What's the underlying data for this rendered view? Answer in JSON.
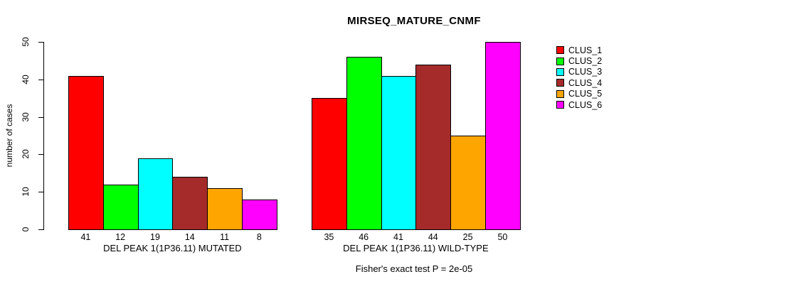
{
  "chart_data": {
    "type": "bar",
    "title": "MIRSEQ_MATURE_CNMF",
    "ylabel": "number of cases",
    "xlabel": "",
    "ylim": [
      0,
      50
    ],
    "yticks": [
      0,
      10,
      20,
      30,
      40,
      50
    ],
    "grid": false,
    "legend_position": "right",
    "legend": [
      {
        "label": "CLUS_1",
        "color": "#FF0000"
      },
      {
        "label": "CLUS_2",
        "color": "#00FF00"
      },
      {
        "label": "CLUS_3",
        "color": "#00FFFF"
      },
      {
        "label": "CLUS_4",
        "color": "#A52A2A"
      },
      {
        "label": "CLUS_5",
        "color": "#FFA500"
      },
      {
        "label": "CLUS_6",
        "color": "#FF00FF"
      }
    ],
    "groups": [
      {
        "label": "DEL PEAK 1(1P36.11) MUTATED",
        "values": [
          41,
          12,
          19,
          14,
          11,
          8
        ]
      },
      {
        "label": "DEL PEAK 1(1P36.11) WILD-TYPE",
        "values": [
          35,
          46,
          41,
          44,
          25,
          50
        ]
      }
    ],
    "annotation": "Fisher's exact test P = 2e-05"
  }
}
